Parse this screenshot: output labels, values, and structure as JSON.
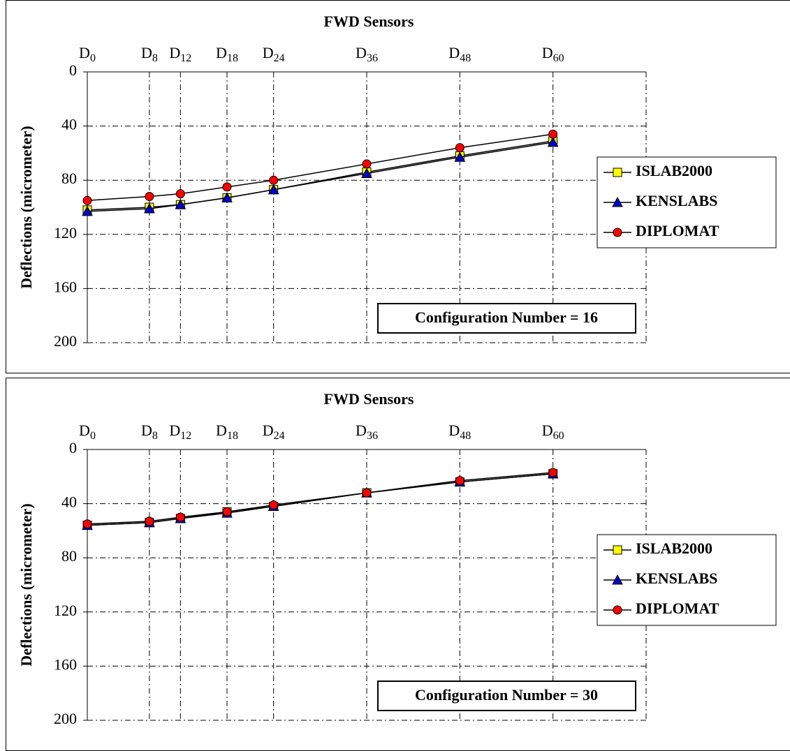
{
  "chart_data": [
    {
      "type": "line",
      "title": "FWD Sensors",
      "y_label": "Deflections (micrometer)",
      "annotation": "Configuration Number = 16",
      "x": [
        0,
        8,
        12,
        18,
        24,
        36,
        48,
        60
      ],
      "xlim": [
        0,
        72
      ],
      "xticks": [
        {
          "value": 0,
          "label": "D0"
        },
        {
          "value": 8,
          "label": "D8"
        },
        {
          "value": 12,
          "label": "D12"
        },
        {
          "value": 18,
          "label": "D18"
        },
        {
          "value": 24,
          "label": "D24"
        },
        {
          "value": 36,
          "label": "D36"
        },
        {
          "value": 48,
          "label": "D48"
        },
        {
          "value": 60,
          "label": "D60"
        }
      ],
      "ylim": [
        0,
        200
      ],
      "yticks": [
        0,
        40,
        80,
        120,
        160,
        200
      ],
      "yreversed": true,
      "grid": true,
      "legend": "right",
      "line_color": "#000000",
      "series": [
        {
          "name": "ISLAB2000",
          "color": "#ffff00",
          "marker": "square",
          "values": [
            102,
            100,
            98,
            93,
            87,
            74,
            62,
            51
          ]
        },
        {
          "name": "KENSLABS",
          "color": "#0000cc",
          "marker": "triangle",
          "values": [
            103,
            101,
            98,
            93,
            87,
            75,
            63,
            52
          ]
        },
        {
          "name": "DIPLOMAT",
          "color": "#ff0000",
          "marker": "circle",
          "values": [
            95,
            92,
            90,
            85,
            80,
            68,
            56,
            46
          ]
        }
      ]
    },
    {
      "type": "line",
      "title": "FWD Sensors",
      "y_label": "Deflections (micrometer)",
      "annotation": "Configuration Number = 30",
      "x": [
        0,
        8,
        12,
        18,
        24,
        36,
        48,
        60
      ],
      "xlim": [
        0,
        72
      ],
      "xticks": [
        {
          "value": 0,
          "label": "D0"
        },
        {
          "value": 8,
          "label": "D8"
        },
        {
          "value": 12,
          "label": "D12"
        },
        {
          "value": 18,
          "label": "D18"
        },
        {
          "value": 24,
          "label": "D24"
        },
        {
          "value": 36,
          "label": "D36"
        },
        {
          "value": 48,
          "label": "D48"
        },
        {
          "value": 60,
          "label": "D60"
        }
      ],
      "ylim": [
        0,
        200
      ],
      "yticks": [
        0,
        40,
        80,
        120,
        160,
        200
      ],
      "yreversed": true,
      "grid": true,
      "legend": "right",
      "line_color": "#000000",
      "series": [
        {
          "name": "ISLAB2000",
          "color": "#ffff00",
          "marker": "square",
          "values": [
            56,
            54,
            51,
            46,
            42,
            32,
            24,
            18
          ]
        },
        {
          "name": "KENSLABS",
          "color": "#0000cc",
          "marker": "triangle",
          "values": [
            56,
            54,
            51,
            47,
            42,
            32,
            24,
            18
          ]
        },
        {
          "name": "DIPLOMAT",
          "color": "#ff0000",
          "marker": "circle",
          "values": [
            55,
            53,
            50,
            46,
            41,
            32,
            23,
            17
          ]
        }
      ]
    }
  ]
}
